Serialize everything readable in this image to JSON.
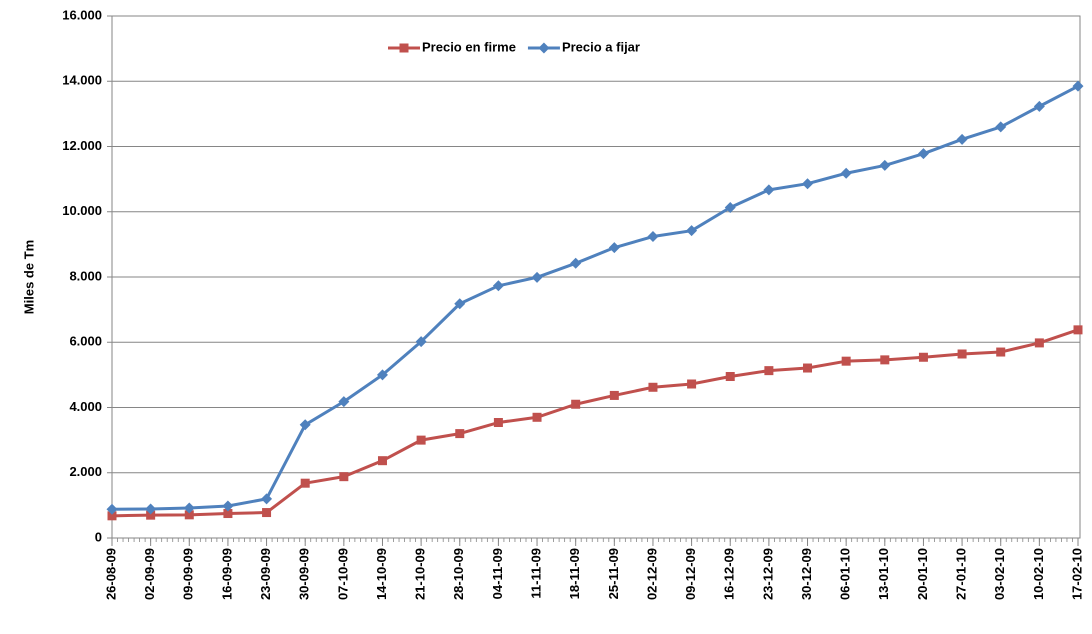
{
  "chart_data": {
    "type": "line",
    "y_label": "Miles de Tm",
    "categories": [
      "26-08-09",
      "02-09-09",
      "09-09-09",
      "16-09-09",
      "23-09-09",
      "30-09-09",
      "07-10-09",
      "14-10-09",
      "21-10-09",
      "28-10-09",
      "04-11-09",
      "11-11-09",
      "18-11-09",
      "25-11-09",
      "02-12-09",
      "09-12-09",
      "16-12-09",
      "23-12-09",
      "30-12-09",
      "06-01-10",
      "13-01-10",
      "20-01-10",
      "27-01-10",
      "03-02-10",
      "10-02-10",
      "17-02-10"
    ],
    "series": [
      {
        "name": "Precio en firme",
        "color": "#C0504D",
        "marker": "square",
        "values": [
          680,
          700,
          710,
          750,
          780,
          1680,
          1880,
          2370,
          3000,
          3200,
          3540,
          3700,
          4100,
          4370,
          4620,
          4720,
          4950,
          5130,
          5210,
          5420,
          5460,
          5540,
          5640,
          5700,
          5980,
          6380
        ]
      },
      {
        "name": "Precio a fijar",
        "color": "#4F81BD",
        "marker": "diamond",
        "values": [
          880,
          890,
          920,
          980,
          1200,
          3470,
          4180,
          5000,
          6020,
          7180,
          7730,
          7990,
          8420,
          8900,
          9240,
          9420,
          10130,
          10670,
          10860,
          11180,
          11420,
          11780,
          12220,
          12600,
          13230,
          13850
        ]
      }
    ],
    "ylim": [
      0,
      16000
    ],
    "yticks": [
      0,
      {
        "value": 2000,
        "label": "2.000"
      },
      {
        "value": 4000,
        "label": "4.000"
      },
      {
        "value": 6000,
        "label": "6.000"
      },
      {
        "value": 8000,
        "label": "8.000"
      },
      {
        "value": 10000,
        "label": "10.000"
      },
      {
        "value": 12000,
        "label": "12.000"
      },
      {
        "value": 14000,
        "label": "14.000"
      },
      {
        "value": 16000,
        "label": "16.000"
      }
    ],
    "grid": true,
    "legend": "top"
  }
}
